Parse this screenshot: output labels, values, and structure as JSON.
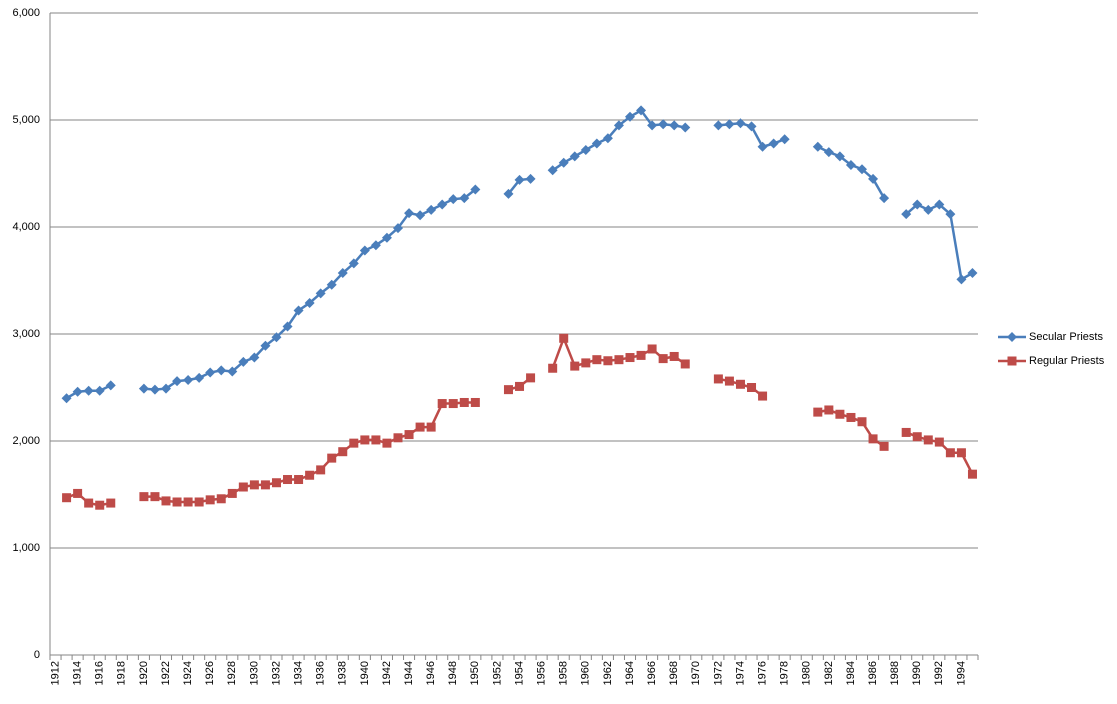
{
  "chart_data": {
    "type": "line",
    "categories": [
      "1912",
      null,
      "1914",
      null,
      "1916",
      null,
      "1918",
      null,
      "1920",
      null,
      "1922",
      null,
      "1924",
      null,
      "1926",
      null,
      "1928",
      null,
      "1930",
      null,
      "1932",
      null,
      "1934",
      null,
      "1936",
      null,
      "1938",
      null,
      "1940",
      null,
      "1942",
      null,
      "1944",
      null,
      "1946",
      null,
      "1948",
      null,
      "1950",
      null,
      "1952",
      null,
      "1954",
      null,
      "1956",
      null,
      "1958",
      null,
      "1960",
      null,
      "1962",
      null,
      "1964",
      null,
      "1966",
      null,
      "1968",
      null,
      "1970",
      null,
      "1972",
      null,
      "1974",
      null,
      "1976",
      null,
      "1978",
      null,
      "1980",
      null,
      "1982",
      null,
      "1984",
      null,
      "1986",
      null,
      "1988",
      null,
      "1990",
      null,
      "1992",
      null,
      "1994",
      null
    ],
    "series": [
      {
        "name": "Secular Priests",
        "color": "#4a7ebb",
        "marker": "diamond",
        "values": [
          null,
          2400,
          2460,
          2470,
          2470,
          2520,
          null,
          null,
          2490,
          2480,
          2490,
          2560,
          2570,
          2590,
          2640,
          2660,
          2650,
          2740,
          2780,
          2890,
          2970,
          3070,
          3220,
          3290,
          3380,
          3460,
          3570,
          3660,
          3780,
          3830,
          3900,
          3990,
          4130,
          4110,
          4160,
          4210,
          4260,
          4270,
          4350,
          null,
          null,
          4310,
          4440,
          4450,
          null,
          4530,
          4600,
          4660,
          4720,
          4780,
          4830,
          4950,
          5030,
          5090,
          4950,
          4960,
          4950,
          4930,
          null,
          null,
          4950,
          4960,
          4970,
          4940,
          4750,
          4780,
          4820,
          null,
          null,
          4750,
          4700,
          4660,
          4580,
          4540,
          4450,
          4270,
          null,
          4120,
          4210,
          4160,
          4210,
          4120,
          3510,
          3570
        ]
      },
      {
        "name": "Regular Priests",
        "color": "#be4b48",
        "marker": "square",
        "values": [
          null,
          1470,
          1510,
          1420,
          1400,
          1420,
          null,
          null,
          1480,
          1480,
          1440,
          1430,
          1430,
          1430,
          1450,
          1460,
          1510,
          1570,
          1590,
          1590,
          1610,
          1640,
          1640,
          1680,
          1730,
          1840,
          1900,
          1980,
          2010,
          2010,
          1980,
          2030,
          2060,
          2130,
          2130,
          2350,
          2350,
          2360,
          2360,
          null,
          null,
          2480,
          2510,
          2590,
          null,
          2680,
          2960,
          2700,
          2730,
          2760,
          2750,
          2760,
          2780,
          2800,
          2860,
          2770,
          2790,
          2720,
          null,
          null,
          2580,
          2560,
          2530,
          2500,
          2420,
          null,
          null,
          null,
          null,
          2270,
          2290,
          2250,
          2220,
          2180,
          2020,
          1950,
          null,
          2080,
          2040,
          2010,
          1990,
          1890,
          1890,
          1690
        ]
      }
    ],
    "ylim": [
      0,
      6000
    ],
    "yticks": [
      0,
      {
        "value": 1000,
        "label": "1,000"
      },
      {
        "value": 2000,
        "label": "2,000"
      },
      {
        "value": 3000,
        "label": "3,000"
      },
      {
        "value": 4000,
        "label": "4,000"
      },
      {
        "value": 5000,
        "label": "5,000"
      },
      {
        "value": 6000,
        "label": "6,000"
      }
    ],
    "grid": true,
    "legend": "right"
  }
}
